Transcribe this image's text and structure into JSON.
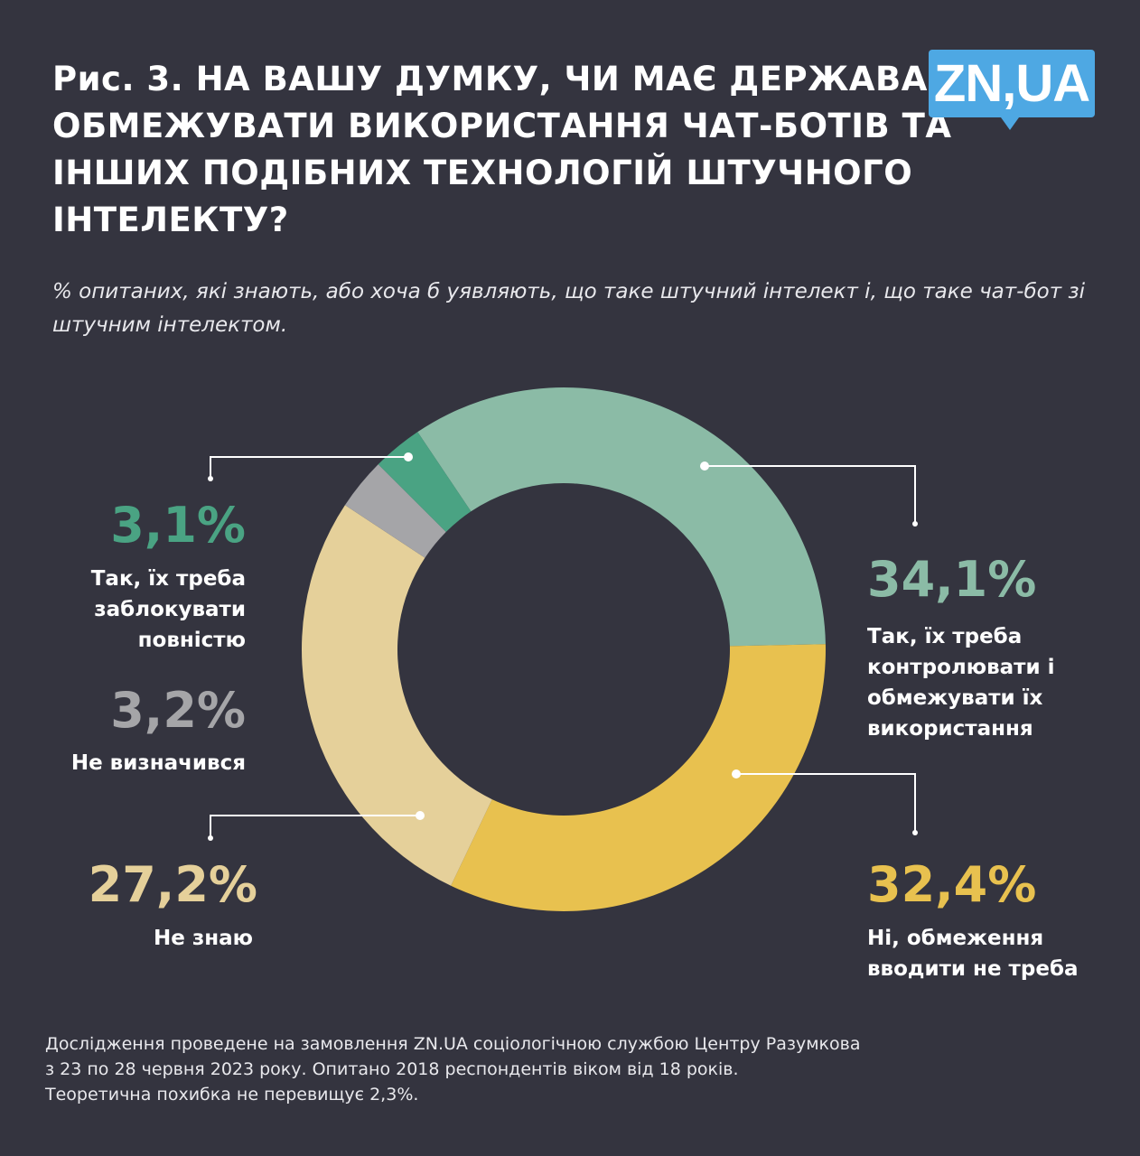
{
  "header": {
    "title": "Рис. 3. НА ВАШУ ДУМКУ, ЧИ МАЄ ДЕРЖАВА ОБМЕЖУВАТИ ВИКОРИСТАННЯ ЧАТ-БОТІВ ТА ІНШИХ ПОДІБНИХ ТЕХНОЛОГІЙ ШТУЧНОГО ІНТЕЛЕКТУ?",
    "subtitle": "% опитаних, які знають, або хоча б уявляють, що таке штучний інтелект і, що таке чат-бот зі штучним інтелектом.",
    "logo": "ZN,UA"
  },
  "chart_data": {
    "type": "pie",
    "donut": true,
    "title": "Рис. 3. НА ВАШУ ДУМКУ, ЧИ МАЄ ДЕРЖАВА ОБМЕЖУВАТИ ВИКОРИСТАННЯ ЧАТ-БОТІВ ТА ІНШИХ ПОДІБНИХ ТЕХНОЛОГІЙ ШТУЧНОГО ІНТЕЛЕКТУ?",
    "slices": [
      {
        "label": "Так, їх треба контролювати і обмежувати їх використання",
        "value": 34.1,
        "display": "34,1%",
        "color": "#8bbba6"
      },
      {
        "label": "Ні, обмеження вводити не треба",
        "value": 32.4,
        "display": "32,4%",
        "color": "#e8c14f"
      },
      {
        "label": "Не знаю",
        "value": 27.2,
        "display": "27,2%",
        "color": "#e5d09a"
      },
      {
        "label": "Не визначився",
        "value": 3.2,
        "display": "3,2%",
        "color": "#a5a5a8"
      },
      {
        "label": "Так, їх треба заблокувати повністю",
        "value": 3.1,
        "display": "3,1%",
        "color": "#4aa383"
      }
    ]
  },
  "footer": {
    "line1": "Дослідження проведене на замовлення ZN.UA соціологічною службою Центру Разумкова",
    "line2": "з 23 по 28 червня 2023 року. Опитано 2018 респондентів віком від 18 років.",
    "line3": "Теоретична похибка не перевищує 2,3%."
  }
}
